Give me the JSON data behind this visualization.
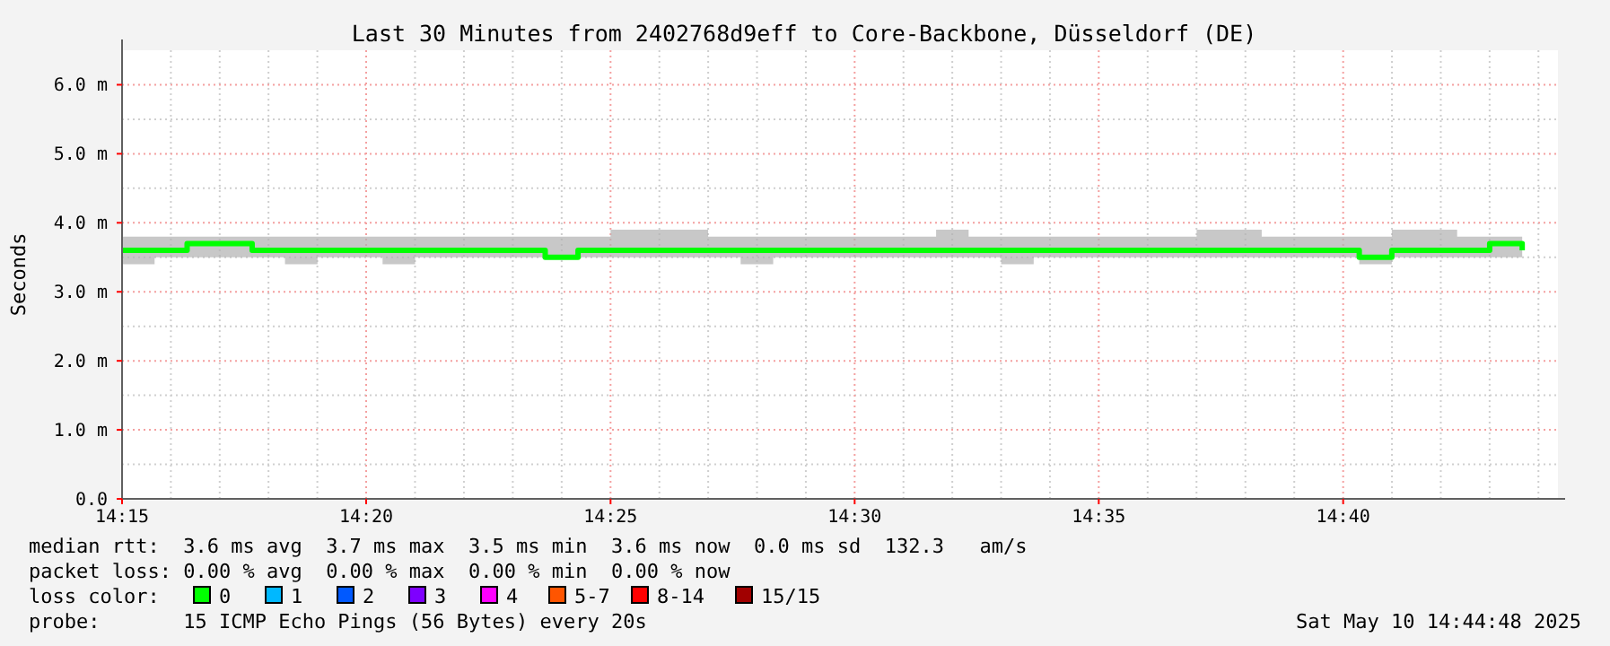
{
  "chart_data": {
    "type": "step",
    "title": "Last 30 Minutes from 2402768d9eff to Core-Backbone, Düsseldorf (DE)",
    "ylabel": "Seconds",
    "x": [
      14.25,
      14.2611,
      14.2722,
      14.2833,
      14.2944,
      14.3056,
      14.3167,
      14.3278,
      14.3389,
      14.35,
      14.3611,
      14.3722,
      14.3833,
      14.3944,
      14.4056,
      14.4167,
      14.4278,
      14.4389,
      14.45,
      14.4611,
      14.4722,
      14.4833,
      14.4944,
      14.5056,
      14.5167,
      14.5278,
      14.5389,
      14.55,
      14.5611,
      14.5722,
      14.5833,
      14.5944,
      14.6056,
      14.6167,
      14.6278,
      14.6389,
      14.65,
      14.6611,
      14.6722,
      14.6833,
      14.6944,
      14.7056,
      14.7167,
      14.7278
    ],
    "series": [
      {
        "color": "#00ff00",
        "values": [
          3.6,
          3.6,
          3.7,
          3.7,
          3.6,
          3.6,
          3.6,
          3.6,
          3.6,
          3.6,
          3.6,
          3.6,
          3.6,
          3.5,
          3.6,
          3.6,
          3.6,
          3.6,
          3.6,
          3.6,
          3.6,
          3.6,
          3.6,
          3.6,
          3.6,
          3.6,
          3.6,
          3.6,
          3.6,
          3.6,
          3.6,
          3.6,
          3.6,
          3.6,
          3.6,
          3.6,
          3.6,
          3.6,
          3.5,
          3.6,
          3.6,
          3.6,
          3.7,
          3.6
        ],
        "lower": [
          3.4,
          3.5,
          3.5,
          3.5,
          3.5,
          3.4,
          3.5,
          3.5,
          3.4,
          3.5,
          3.5,
          3.5,
          3.5,
          3.5,
          3.5,
          3.5,
          3.5,
          3.5,
          3.5,
          3.4,
          3.5,
          3.5,
          3.5,
          3.5,
          3.5,
          3.5,
          3.5,
          3.4,
          3.5,
          3.5,
          3.5,
          3.5,
          3.5,
          3.5,
          3.5,
          3.5,
          3.5,
          3.5,
          3.4,
          3.5,
          3.5,
          3.5,
          3.5,
          3.5
        ],
        "upper": [
          3.8,
          3.8,
          3.8,
          3.8,
          3.8,
          3.8,
          3.8,
          3.8,
          3.8,
          3.8,
          3.8,
          3.8,
          3.8,
          3.8,
          3.8,
          3.9,
          3.9,
          3.9,
          3.8,
          3.8,
          3.8,
          3.8,
          3.8,
          3.8,
          3.8,
          3.9,
          3.8,
          3.8,
          3.8,
          3.8,
          3.8,
          3.8,
          3.8,
          3.9,
          3.9,
          3.8,
          3.8,
          3.8,
          3.8,
          3.9,
          3.9,
          3.8,
          3.8,
          3.8
        ]
      }
    ],
    "xlim": [
      14.25,
      14.74
    ],
    "xticks": [
      {
        "value": 14.25,
        "label": "14:15"
      },
      {
        "value": 14.3333,
        "label": "14:20"
      },
      {
        "value": 14.4167,
        "label": "14:25"
      },
      {
        "value": 14.5,
        "label": "14:30"
      },
      {
        "value": 14.5833,
        "label": "14:35"
      },
      {
        "value": 14.6667,
        "label": "14:40"
      }
    ],
    "ylim": [
      0,
      6.5
    ],
    "yticks": [
      {
        "value": 0,
        "label": "0.0"
      },
      {
        "value": 1,
        "label": "1.0 m"
      },
      {
        "value": 2,
        "label": "2.0 m"
      },
      {
        "value": 3,
        "label": "3.0 m"
      },
      {
        "value": 4,
        "label": "4.0 m"
      },
      {
        "value": 5,
        "label": "5.0 m"
      },
      {
        "value": 6,
        "label": "6.0 m"
      }
    ],
    "grid": true,
    "annotations": [
      "median rtt:  3.6 ms avg  3.7 ms max  3.5 ms min  3.6 ms now  0.0 ms sd  132.3   am/s",
      "packet loss: 0.00 % avg  0.00 % max  0.00 % min  0.00 % now",
      "loss color:",
      "0",
      "1",
      "2",
      "3",
      "4",
      "5-7",
      "8-14",
      "15/15",
      "probe:       15 ICMP Echo Pings (56 Bytes) every 20s",
      "Sat May 10 14:44:48 2025"
    ]
  }
}
